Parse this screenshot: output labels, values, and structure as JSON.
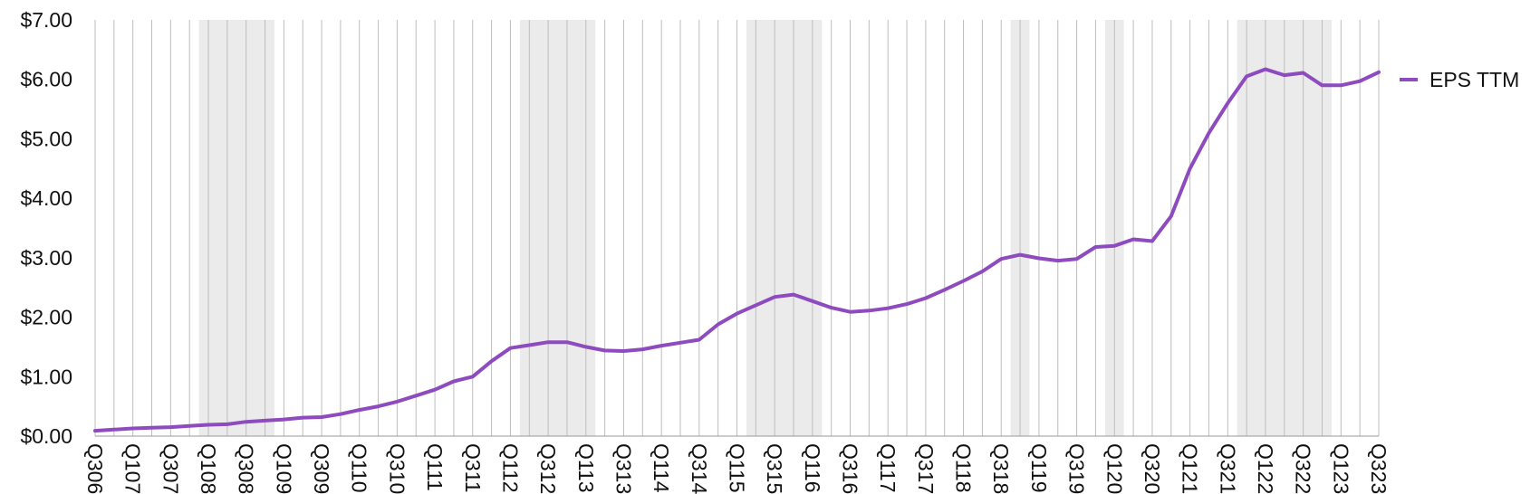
{
  "chart_data": {
    "type": "line",
    "title": "",
    "xlabel": "",
    "ylabel": "",
    "ylim": [
      0,
      7
    ],
    "y_ticks": [
      "$0.00",
      "$1.00",
      "$2.00",
      "$3.00",
      "$4.00",
      "$5.00",
      "$6.00",
      "$7.00"
    ],
    "categories": [
      "Q306",
      "Q406",
      "Q107",
      "Q207",
      "Q307",
      "Q407",
      "Q108",
      "Q208",
      "Q308",
      "Q408",
      "Q109",
      "Q209",
      "Q309",
      "Q409",
      "Q110",
      "Q210",
      "Q310",
      "Q410",
      "Q111",
      "Q211",
      "Q311",
      "Q411",
      "Q112",
      "Q212",
      "Q312",
      "Q412",
      "Q113",
      "Q213",
      "Q313",
      "Q413",
      "Q114",
      "Q214",
      "Q314",
      "Q414",
      "Q115",
      "Q215",
      "Q315",
      "Q415",
      "Q116",
      "Q216",
      "Q316",
      "Q416",
      "Q117",
      "Q217",
      "Q317",
      "Q417",
      "Q118",
      "Q218",
      "Q318",
      "Q418",
      "Q119",
      "Q219",
      "Q319",
      "Q419",
      "Q120",
      "Q220",
      "Q320",
      "Q420",
      "Q121",
      "Q221",
      "Q321",
      "Q421",
      "Q122",
      "Q222",
      "Q322",
      "Q422",
      "Q123",
      "Q223",
      "Q323"
    ],
    "x_tick_labels": [
      "Q306",
      "Q107",
      "Q307",
      "Q108",
      "Q308",
      "Q109",
      "Q309",
      "Q110",
      "Q310",
      "Q111",
      "Q311",
      "Q112",
      "Q312",
      "Q113",
      "Q313",
      "Q114",
      "Q314",
      "Q115",
      "Q315",
      "Q116",
      "Q316",
      "Q117",
      "Q317",
      "Q118",
      "Q318",
      "Q119",
      "Q319",
      "Q120",
      "Q320",
      "Q121",
      "Q321",
      "Q122",
      "Q322",
      "Q123",
      "Q323"
    ],
    "recession_bands": [
      [
        "Q108",
        "Q408"
      ],
      [
        "Q212",
        "Q113"
      ],
      [
        "Q215",
        "Q116"
      ],
      [
        "Q418",
        "Q418"
      ],
      [
        "Q120",
        "Q120"
      ],
      [
        "Q421",
        "Q422"
      ]
    ],
    "series": [
      {
        "name": "EPS TTM",
        "color": "#8e4bbf",
        "values": [
          0.09,
          0.11,
          0.13,
          0.14,
          0.15,
          0.17,
          0.19,
          0.2,
          0.24,
          0.26,
          0.28,
          0.31,
          0.32,
          0.37,
          0.44,
          0.5,
          0.58,
          0.68,
          0.78,
          0.92,
          1.0,
          1.26,
          1.48,
          1.53,
          1.58,
          1.58,
          1.5,
          1.44,
          1.43,
          1.46,
          1.52,
          1.57,
          1.62,
          1.88,
          2.06,
          2.2,
          2.34,
          2.38,
          2.27,
          2.16,
          2.09,
          2.11,
          2.15,
          2.22,
          2.32,
          2.46,
          2.61,
          2.77,
          2.98,
          3.05,
          2.99,
          2.95,
          2.98,
          3.18,
          3.2,
          3.31,
          3.28,
          3.7,
          4.5,
          5.1,
          5.6,
          6.05,
          6.17,
          6.07,
          6.11,
          5.9,
          5.9,
          5.97,
          6.12
        ]
      }
    ],
    "legend": {
      "position": "right",
      "entries": [
        "EPS TTM"
      ]
    },
    "grid": {
      "vertical": true,
      "horizontal": false
    }
  }
}
